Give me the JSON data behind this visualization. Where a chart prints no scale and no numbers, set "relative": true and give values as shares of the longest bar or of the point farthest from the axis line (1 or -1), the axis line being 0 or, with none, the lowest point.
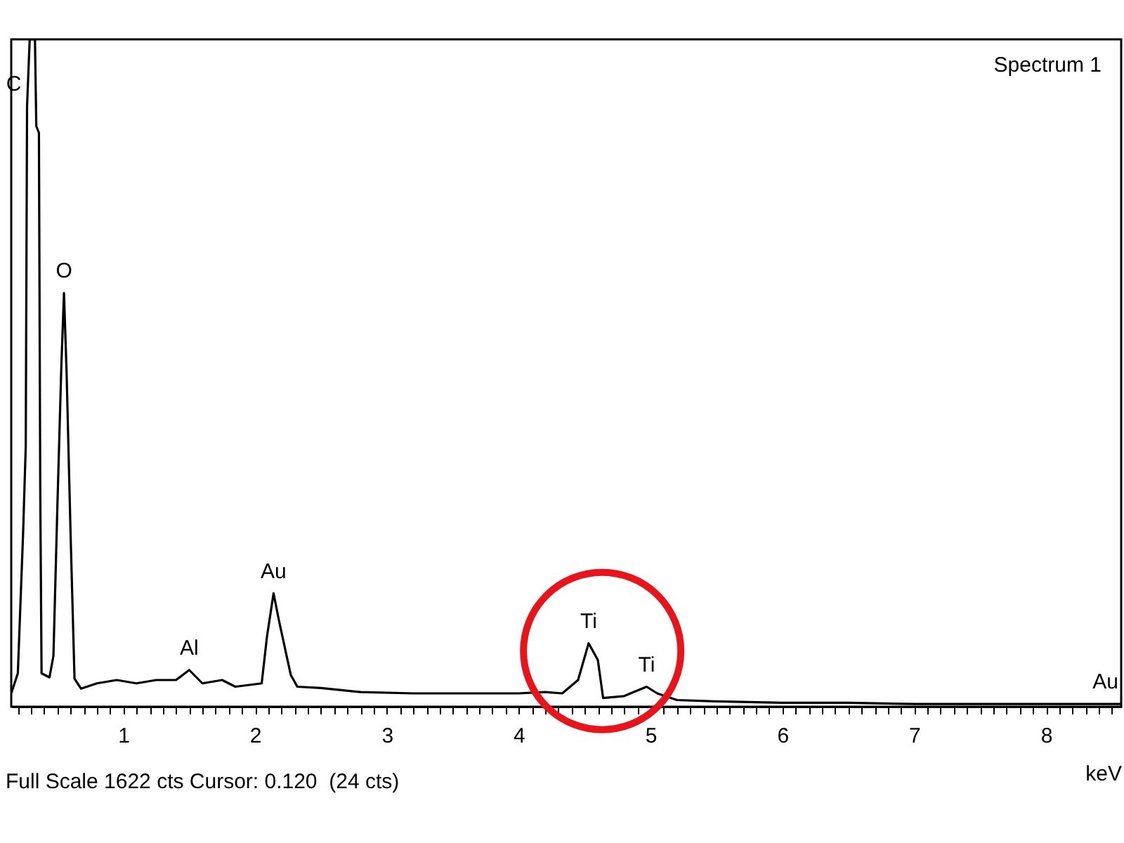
{
  "chart_data": {
    "type": "line",
    "title": "Spectrum 1",
    "xlabel": "keV",
    "relative": true,
    "xlim": [
      0.15,
      8.57
    ],
    "xticks": [
      {
        "value": 0.2,
        "label": null
      },
      {
        "value": 0.3,
        "label": null
      },
      {
        "value": 0.4,
        "label": null
      },
      {
        "value": 0.5,
        "label": null
      },
      {
        "value": 0.6,
        "label": null
      },
      {
        "value": 0.7,
        "label": null
      },
      {
        "value": 0.8,
        "label": null
      },
      {
        "value": 0.9,
        "label": null
      },
      1,
      {
        "value": 1.1,
        "label": null
      },
      {
        "value": 1.2,
        "label": null
      },
      {
        "value": 1.3,
        "label": null
      },
      {
        "value": 1.4,
        "label": null
      },
      {
        "value": 1.5,
        "label": null
      },
      {
        "value": 1.6,
        "label": null
      },
      {
        "value": 1.7,
        "label": null
      },
      {
        "value": 1.8,
        "label": null
      },
      {
        "value": 1.9,
        "label": null
      },
      2,
      {
        "value": 2.1,
        "label": null
      },
      {
        "value": 2.2,
        "label": null
      },
      {
        "value": 2.3,
        "label": null
      },
      {
        "value": 2.4,
        "label": null
      },
      {
        "value": 2.5,
        "label": null
      },
      {
        "value": 2.6,
        "label": null
      },
      {
        "value": 2.7,
        "label": null
      },
      {
        "value": 2.8,
        "label": null
      },
      {
        "value": 2.9,
        "label": null
      },
      3,
      {
        "value": 3.1,
        "label": null
      },
      {
        "value": 3.2,
        "label": null
      },
      {
        "value": 3.3,
        "label": null
      },
      {
        "value": 3.4,
        "label": null
      },
      {
        "value": 3.5,
        "label": null
      },
      {
        "value": 3.6,
        "label": null
      },
      {
        "value": 3.7,
        "label": null
      },
      {
        "value": 3.8,
        "label": null
      },
      {
        "value": 3.9,
        "label": null
      },
      4,
      {
        "value": 4.1,
        "label": null
      },
      {
        "value": 4.2,
        "label": null
      },
      {
        "value": 4.3,
        "label": null
      },
      {
        "value": 4.4,
        "label": null
      },
      {
        "value": 4.5,
        "label": null
      },
      {
        "value": 4.6,
        "label": null
      },
      {
        "value": 4.7,
        "label": null
      },
      {
        "value": 4.8,
        "label": null
      },
      {
        "value": 4.9,
        "label": null
      },
      5,
      {
        "value": 5.1,
        "label": null
      },
      {
        "value": 5.2,
        "label": null
      },
      {
        "value": 5.3,
        "label": null
      },
      {
        "value": 5.4,
        "label": null
      },
      {
        "value": 5.5,
        "label": null
      },
      {
        "value": 5.6,
        "label": null
      },
      {
        "value": 5.7,
        "label": null
      },
      {
        "value": 5.8,
        "label": null
      },
      {
        "value": 5.9,
        "label": null
      },
      6,
      {
        "value": 6.1,
        "label": null
      },
      {
        "value": 6.2,
        "label": null
      },
      {
        "value": 6.3,
        "label": null
      },
      {
        "value": 6.4,
        "label": null
      },
      {
        "value": 6.5,
        "label": null
      },
      {
        "value": 6.6,
        "label": null
      },
      {
        "value": 6.7,
        "label": null
      },
      {
        "value": 6.8,
        "label": null
      },
      {
        "value": 6.9,
        "label": null
      },
      7,
      {
        "value": 7.1,
        "label": null
      },
      {
        "value": 7.2,
        "label": null
      },
      {
        "value": 7.3,
        "label": null
      },
      {
        "value": 7.4,
        "label": null
      },
      {
        "value": 7.5,
        "label": null
      },
      {
        "value": 7.6,
        "label": null
      },
      {
        "value": 7.7,
        "label": null
      },
      {
        "value": 7.8,
        "label": null
      },
      {
        "value": 7.9,
        "label": null
      },
      8,
      {
        "value": 8.1,
        "label": null
      },
      {
        "value": 8.2,
        "label": null
      },
      {
        "value": 8.3,
        "label": null
      },
      {
        "value": 8.4,
        "label": null
      },
      {
        "value": 8.5,
        "label": null
      }
    ],
    "x": [
      0.15,
      0.2,
      0.24,
      0.26,
      0.27,
      0.29,
      0.33,
      0.34,
      0.36,
      0.37,
      0.38,
      0.44,
      0.47,
      0.5,
      0.53,
      0.55,
      0.57,
      0.6,
      0.63,
      0.68,
      0.8,
      0.95,
      1.1,
      1.25,
      1.4,
      1.5,
      1.6,
      1.75,
      1.85,
      2.05,
      2.09,
      2.14,
      2.18,
      2.27,
      2.32,
      2.5,
      2.8,
      3.2,
      3.6,
      4.0,
      4.2,
      4.33,
      4.45,
      4.53,
      4.6,
      4.64,
      4.8,
      4.97,
      5.05,
      5.2,
      5.5,
      6.0,
      6.5,
      7.0,
      7.5,
      8.0,
      8.57
    ],
    "series": [
      {
        "color": "#000000",
        "values": [
          0.02,
          0.05,
          0.26,
          0.39,
          0.9,
          1.0,
          1.0,
          0.87,
          0.86,
          0.33,
          0.05,
          0.044,
          0.076,
          0.3,
          0.51,
          0.62,
          0.5,
          0.26,
          0.042,
          0.027,
          0.035,
          0.04,
          0.035,
          0.04,
          0.04,
          0.055,
          0.035,
          0.04,
          0.03,
          0.035,
          0.105,
          0.17,
          0.13,
          0.048,
          0.03,
          0.028,
          0.022,
          0.02,
          0.02,
          0.02,
          0.022,
          0.02,
          0.04,
          0.095,
          0.07,
          0.013,
          0.016,
          0.03,
          0.02,
          0.01,
          0.008,
          0.006,
          0.006,
          0.004,
          0.004,
          0.004,
          0.004
        ]
      }
    ],
    "line_style": "solid",
    "marker": "none",
    "grid": false,
    "annotations": [
      {
        "text": "C",
        "x": 0.27,
        "y": 0.9
      },
      {
        "text": "O",
        "x": 0.55,
        "y": 0.62
      },
      {
        "text": "Al",
        "x": 1.5,
        "y": 0.055
      },
      {
        "text": "Au",
        "x": 2.14,
        "y": 0.17
      },
      {
        "text": "Ti",
        "x": 4.53,
        "y": 0.095
      },
      {
        "text": "Ti",
        "x": 4.97,
        "y": 0.03
      },
      {
        "text": "Au",
        "x": 8.57,
        "y": 0.004
      },
      "Full Scale 1622 cts Cursor: 0.120  (24 cts)"
    ]
  }
}
